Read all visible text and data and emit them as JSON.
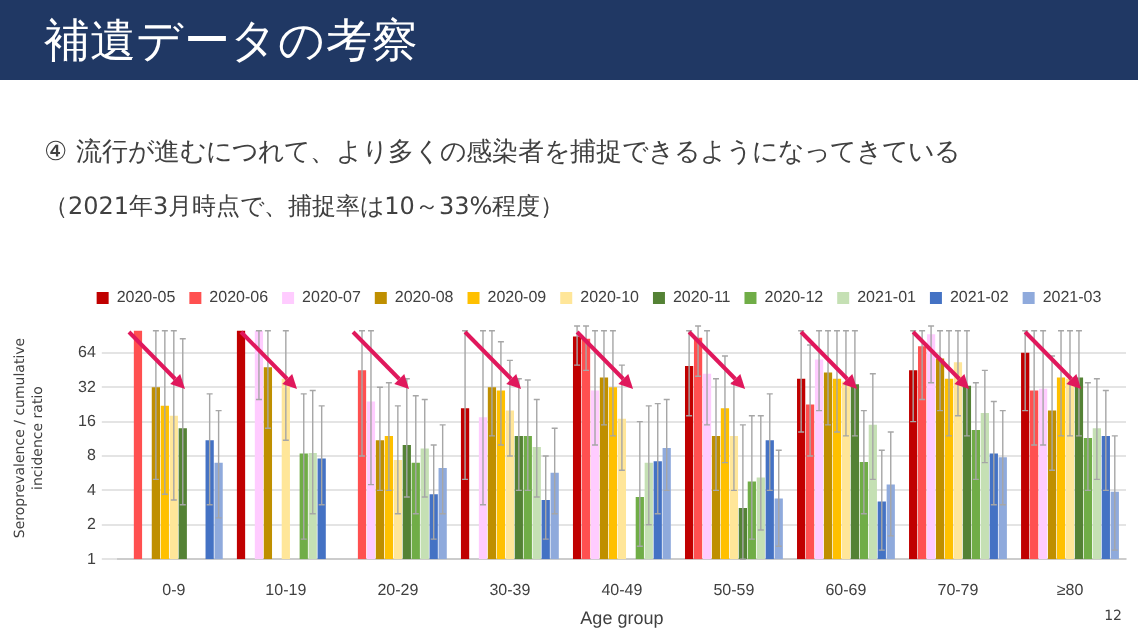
{
  "chart_data": {
    "type": "bar",
    "title": "補遺データの考察",
    "subtitle": "④ 流行が進むにつれて、より多くの感染者を捕捉できるようになってきている",
    "annotations": [
      "（2021年3月時点で、捕捉率は10～33%程度）",
      "12"
    ],
    "xlabel": "Age group",
    "ylabel": "Seroprevalence / cumulative incidence ratio",
    "categories": [
      "0-9",
      "10-19",
      "20-29",
      "30-39",
      "40-49",
      "50-59",
      "60-69",
      "70-79",
      "≥80"
    ],
    "log": true,
    "ylim": [
      1,
      110
    ],
    "yticks": [
      1,
      2,
      4,
      8,
      16,
      32,
      64
    ],
    "grid": "y",
    "legend": "top",
    "series": [
      {
        "name": "2020-05",
        "color": "#c00000",
        "values": [
          null,
          100,
          null,
          21,
          89,
          49,
          38,
          45,
          64
        ],
        "errors": [
          null,
          null,
          null,
          [
            5,
            100
          ],
          [
            50,
            110
          ],
          [
            18,
            100
          ],
          [
            13,
            100
          ],
          [
            16,
            100
          ],
          [
            20,
            100
          ]
        ]
      },
      {
        "name": "2020-06",
        "color": "#ff5050",
        "values": [
          100,
          null,
          45,
          null,
          85,
          87,
          22.6,
          73,
          30
        ],
        "errors": [
          null,
          null,
          [
            8,
            100
          ],
          null,
          [
            45,
            110
          ],
          [
            40,
            110
          ],
          [
            8,
            75
          ],
          [
            25,
            100
          ],
          [
            10,
            100
          ]
        ]
      },
      {
        "name": "2020-07",
        "color": "#ffccff",
        "values": [
          null,
          100,
          24,
          17.5,
          30,
          42,
          56,
          93,
          31
        ],
        "errors": [
          null,
          [
            25,
            100
          ],
          [
            4.5,
            100
          ],
          [
            3,
            100
          ],
          [
            10,
            100
          ],
          [
            15,
            100
          ],
          [
            20,
            100
          ],
          [
            35,
            110
          ],
          [
            10,
            100
          ]
        ]
      },
      {
        "name": "2020-08",
        "color": "#bf8f00",
        "values": [
          32,
          48,
          11,
          32,
          39,
          12,
          43,
          57,
          20
        ],
        "errors": [
          [
            5,
            100
          ],
          [
            14,
            100
          ],
          [
            4,
            32
          ],
          [
            12,
            100
          ],
          [
            15,
            100
          ],
          [
            4,
            38
          ],
          [
            15,
            100
          ],
          [
            20,
            100
          ],
          [
            6,
            60
          ]
        ]
      },
      {
        "name": "2020-09",
        "color": "#ffc000",
        "values": [
          22,
          null,
          12,
          30,
          32,
          21,
          38,
          38,
          39
        ],
        "errors": [
          [
            3.7,
            100
          ],
          null,
          [
            4,
            35
          ],
          [
            10,
            80
          ],
          [
            12,
            100
          ],
          [
            7,
            60
          ],
          [
            13,
            100
          ],
          [
            12,
            100
          ],
          [
            12,
            100
          ]
        ]
      },
      {
        "name": "2020-10",
        "color": "#ffe699",
        "values": [
          18,
          38,
          7.4,
          20,
          17,
          12,
          36,
          53,
          38
        ],
        "errors": [
          [
            3.3,
            100
          ],
          [
            11,
            100
          ],
          [
            2.5,
            22
          ],
          [
            8,
            55
          ],
          [
            6,
            50
          ],
          [
            4,
            35
          ],
          [
            12,
            100
          ],
          [
            18,
            100
          ],
          [
            12,
            100
          ]
        ]
      },
      {
        "name": "2020-11",
        "color": "#548235",
        "values": [
          14,
          null,
          10,
          12,
          null,
          2.8,
          34,
          33,
          39
        ],
        "errors": [
          [
            3,
            85
          ],
          null,
          [
            3.5,
            38
          ],
          [
            4,
            38
          ],
          null,
          [
            1,
            15
          ],
          [
            12,
            100
          ],
          [
            12,
            100
          ],
          [
            12,
            100
          ]
        ]
      },
      {
        "name": "2020-12",
        "color": "#70ad47",
        "values": [
          null,
          8.4,
          7,
          12,
          3.5,
          4.8,
          7.1,
          13.5,
          11.5
        ],
        "errors": [
          null,
          [
            1.5,
            28
          ],
          [
            2.5,
            27
          ],
          [
            4,
            37
          ],
          [
            1.3,
            16
          ],
          [
            1.5,
            18
          ],
          [
            2.5,
            20
          ],
          [
            5,
            35
          ],
          [
            4,
            35
          ]
        ]
      },
      {
        "name": "2021-01",
        "color": "#c5e0b4",
        "values": [
          null,
          8.5,
          9.3,
          9.6,
          7,
          5.2,
          15,
          19,
          14
        ],
        "errors": [
          null,
          [
            2.5,
            30
          ],
          [
            3.5,
            25
          ],
          [
            3.5,
            25
          ],
          [
            2,
            22
          ],
          [
            1.8,
            18
          ],
          [
            5,
            42
          ],
          [
            7,
            45
          ],
          [
            5,
            38
          ]
        ]
      },
      {
        "name": "2021-02",
        "color": "#4472c4",
        "values": [
          11,
          7.6,
          3.7,
          3.3,
          7.2,
          11,
          3.2,
          8.4,
          12
        ],
        "errors": [
          [
            3,
            28
          ],
          [
            3,
            22
          ],
          [
            1.5,
            10
          ],
          [
            1.5,
            8
          ],
          [
            2.5,
            23
          ],
          [
            4,
            28
          ],
          [
            1.2,
            9
          ],
          [
            3,
            24
          ],
          [
            4,
            30
          ]
        ]
      },
      {
        "name": "2021-03",
        "color": "#8faadc",
        "values": [
          7,
          null,
          6.3,
          5.7,
          9.4,
          3.4,
          4.5,
          7.8,
          3.9
        ],
        "errors": [
          [
            2.3,
            20
          ],
          null,
          [
            2.5,
            15
          ],
          [
            2.5,
            14
          ],
          [
            4,
            25
          ],
          [
            1.3,
            9
          ],
          [
            1.6,
            13
          ],
          [
            3,
            20
          ],
          [
            1.2,
            12
          ]
        ]
      }
    ]
  }
}
